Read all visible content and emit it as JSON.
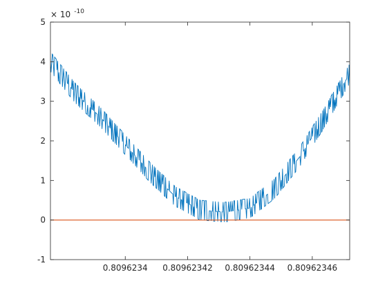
{
  "chart_data": {
    "type": "line",
    "title": "",
    "xlabel": "",
    "ylabel": "",
    "grid": false,
    "legend": "none",
    "xlim": [
      0.809623376,
      0.809623472
    ],
    "ylim": [
      -1,
      5
    ],
    "y_exponent_label": {
      "base": "× 10",
      "exponent": "-10"
    },
    "x_ticks": [
      {
        "value": 0.8096234,
        "label": "0.8096234"
      },
      {
        "value": 0.80962342,
        "label": "0.80962342"
      },
      {
        "value": 0.80962344,
        "label": "0.80962344"
      },
      {
        "value": 0.80962346,
        "label": "0.80962346"
      }
    ],
    "y_ticks": [
      {
        "value": -1,
        "label": "-1"
      },
      {
        "value": 0,
        "label": "0"
      },
      {
        "value": 1,
        "label": "1"
      },
      {
        "value": 2,
        "label": "2"
      },
      {
        "value": 3,
        "label": "3"
      },
      {
        "value": 4,
        "label": "4"
      },
      {
        "value": 5,
        "label": "5"
      }
    ],
    "series": [
      {
        "color": "#0072BD",
        "trend": {
          "x": [
            0.809623376,
            0.809623384,
            0.809623392,
            0.8096234,
            0.809623408,
            0.809623416,
            0.809623424,
            0.809623432,
            0.80962344,
            0.809623448,
            0.809623456,
            0.809623464,
            0.809623472
          ],
          "y": [
            4.0,
            3.2,
            2.6,
            1.9,
            1.2,
            0.6,
            0.25,
            0.2,
            0.3,
            0.8,
            1.6,
            2.6,
            3.7
          ]
        },
        "noise_amplitude": 0.35,
        "sample_count": 500
      },
      {
        "color": "#D95319",
        "x": [
          0.809623376,
          0.809623472
        ],
        "y": [
          0,
          0
        ]
      }
    ]
  }
}
